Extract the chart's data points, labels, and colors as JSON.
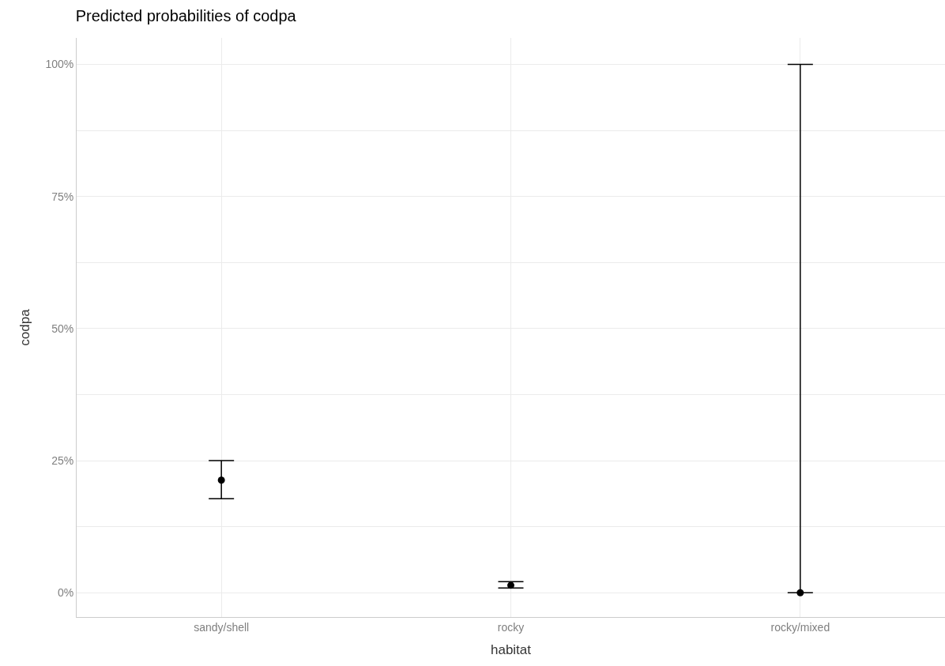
{
  "chart_data": {
    "type": "scatter",
    "title": "Predicted probabilities of codpa",
    "xlabel": "habitat",
    "ylabel": "codpa",
    "categories": [
      "sandy/shell",
      "rocky",
      "rocky/mixed"
    ],
    "series": [
      {
        "color": "#000000",
        "values": [
          21.3,
          1.4,
          0
        ],
        "errors": [
          [
            17.8,
            25.0
          ],
          [
            0.9,
            2.1
          ],
          [
            0,
            100
          ]
        ]
      }
    ],
    "ylim": [
      -4.6,
      105
    ],
    "yticks": [
      {
        "value": 0,
        "label": "0%"
      },
      {
        "value": 12.5,
        "label": null
      },
      {
        "value": 25,
        "label": "25%"
      },
      {
        "value": 37.5,
        "label": null
      },
      {
        "value": 50,
        "label": "50%"
      },
      {
        "value": 62.5,
        "label": null
      },
      {
        "value": 75,
        "label": "75%"
      },
      {
        "value": 87.5,
        "label": null
      },
      {
        "value": 100,
        "label": "100%"
      }
    ],
    "grid": true,
    "marker": "circle"
  }
}
